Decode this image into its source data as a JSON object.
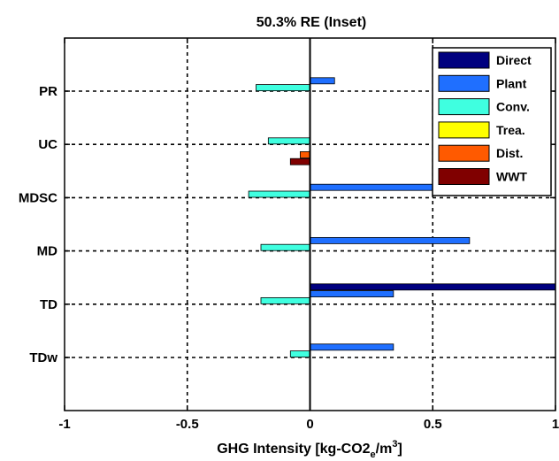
{
  "chart_data": {
    "type": "bar",
    "orientation": "horizontal",
    "title": "50.3% RE (Inset)",
    "xlabel": {
      "main": "GHG Intensity [kg-CO2",
      "sub": "e",
      "mid": "/m",
      "sup": "3",
      "end": "]"
    },
    "ylabel": "",
    "xlim": [
      -1,
      1
    ],
    "xticks": [
      "-1",
      "-0.5",
      "0",
      "0.5",
      "1"
    ],
    "grid": true,
    "legend_position": "top-right",
    "categories": [
      "PR",
      "UC",
      "MDSC",
      "MD",
      "TD",
      "TDw"
    ],
    "series": [
      {
        "name": "Direct",
        "color": "#00007f",
        "values": [
          0,
          0,
          0,
          0,
          1.0,
          0
        ]
      },
      {
        "name": "Plant",
        "color": "#1f6fff",
        "values": [
          0.1,
          0,
          0.65,
          0.65,
          0.34,
          0.34
        ]
      },
      {
        "name": "Conv.",
        "color": "#3fffe0",
        "values": [
          -0.22,
          -0.17,
          -0.25,
          -0.2,
          -0.2,
          -0.08
        ]
      },
      {
        "name": "Trea.",
        "color": "#ffff00",
        "values": [
          0,
          0,
          0,
          0,
          0,
          0
        ]
      },
      {
        "name": "Dist.",
        "color": "#ff5a00",
        "values": [
          0,
          -0.04,
          0,
          0,
          0,
          0
        ]
      },
      {
        "name": "WWT",
        "color": "#800000",
        "values": [
          0,
          -0.08,
          0,
          0,
          0,
          0
        ]
      }
    ]
  }
}
